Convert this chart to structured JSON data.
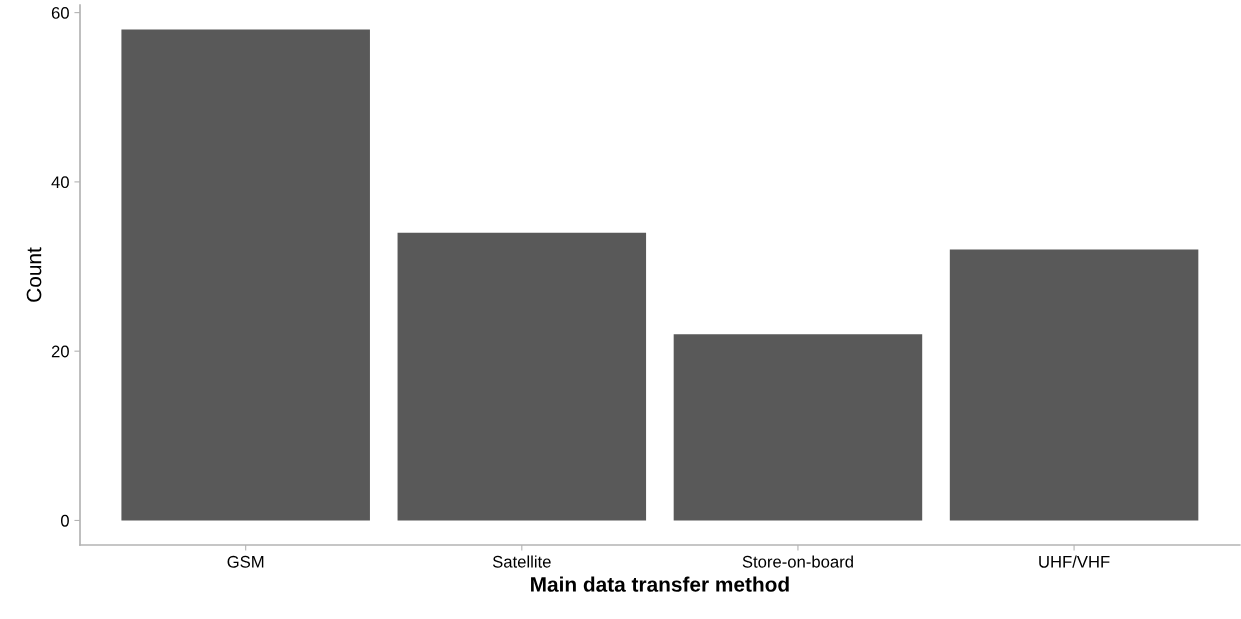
{
  "chart_data": {
    "type": "bar",
    "xlabel": "Main data transfer method",
    "ylabel": "Count",
    "categories": [
      "GSM",
      "Satellite",
      "Store-on-board",
      "UHF/VHF"
    ],
    "values": [
      58,
      34,
      22,
      32
    ],
    "color": "#595959",
    "ylim": [
      -2.9,
      60.9
    ],
    "yticks": [
      0,
      20,
      40,
      60
    ],
    "grid": false
  }
}
